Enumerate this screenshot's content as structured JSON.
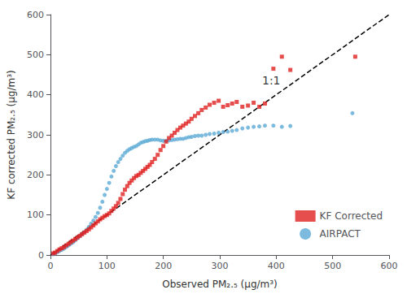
{
  "chart_data": {
    "type": "scatter",
    "title": "",
    "xlabel": "Observed PM₂.₅ (μg/m³)",
    "ylabel": "KF corrected PM₂.₅ (μg/m³)",
    "xlim": [
      0,
      600
    ],
    "ylim": [
      0,
      600
    ],
    "xticks": [
      0,
      100,
      200,
      300,
      400,
      500,
      600
    ],
    "yticks": [
      0,
      100,
      200,
      300,
      400,
      500,
      600
    ],
    "grid": false,
    "legend": "lower right",
    "annotations": [
      {
        "text": "1:1",
        "x": 375,
        "y": 435
      }
    ],
    "series": [
      {
        "type": "line",
        "color": "#000000",
        "line_style": "dashed",
        "x": [
          0,
          600
        ],
        "values": [
          0,
          600
        ]
      },
      {
        "type": "scatter",
        "name": "AIRPACT",
        "color": "#5baad4",
        "marker": "circle",
        "x": [
          5,
          8,
          12,
          16,
          20,
          24,
          28,
          32,
          36,
          40,
          44,
          48,
          52,
          56,
          60,
          64,
          68,
          72,
          76,
          80,
          84,
          88,
          92,
          96,
          100,
          104,
          108,
          112,
          116,
          120,
          124,
          128,
          132,
          136,
          140,
          144,
          148,
          152,
          156,
          160,
          164,
          168,
          172,
          176,
          180,
          185,
          190,
          195,
          200,
          205,
          210,
          215,
          220,
          225,
          230,
          235,
          240,
          245,
          250,
          256,
          262,
          268,
          275,
          282,
          290,
          298,
          306,
          314,
          322,
          330,
          340,
          350,
          360,
          370,
          380,
          395,
          410,
          425,
          535
        ],
        "values": [
          2,
          4,
          7,
          10,
          13,
          16,
          20,
          24,
          28,
          32,
          37,
          42,
          47,
          52,
          57,
          63,
          70,
          78,
          86,
          95,
          105,
          118,
          133,
          150,
          165,
          180,
          196,
          210,
          222,
          232,
          240,
          248,
          255,
          260,
          264,
          267,
          270,
          272,
          276,
          280,
          282,
          284,
          285,
          287,
          288,
          288,
          288,
          286,
          285,
          285,
          286,
          287,
          288,
          289,
          290,
          290,
          292,
          294,
          295,
          297,
          298,
          298,
          300,
          302,
          303,
          305,
          307,
          308,
          310,
          312,
          316,
          318,
          320,
          321,
          323,
          323,
          320,
          322,
          354
        ]
      },
      {
        "type": "scatter",
        "name": "KF Corrected",
        "color": "#e02020",
        "marker": "square",
        "x": [
          5,
          8,
          12,
          16,
          20,
          24,
          28,
          32,
          36,
          40,
          44,
          48,
          52,
          56,
          60,
          64,
          68,
          72,
          76,
          80,
          84,
          88,
          92,
          96,
          100,
          104,
          108,
          112,
          116,
          120,
          124,
          128,
          132,
          136,
          140,
          144,
          148,
          152,
          156,
          160,
          164,
          168,
          172,
          176,
          180,
          185,
          190,
          195,
          200,
          205,
          210,
          215,
          220,
          225,
          230,
          235,
          240,
          245,
          250,
          256,
          262,
          268,
          275,
          282,
          290,
          298,
          306,
          314,
          322,
          330,
          340,
          350,
          360,
          370,
          380,
          395,
          410,
          425,
          540
        ],
        "values": [
          4,
          6,
          10,
          14,
          17,
          20,
          24,
          28,
          32,
          36,
          40,
          44,
          48,
          52,
          56,
          60,
          64,
          69,
          74,
          79,
          84,
          89,
          93,
          97,
          100,
          104,
          110,
          116,
          122,
          130,
          140,
          152,
          163,
          172,
          180,
          186,
          192,
          197,
          200,
          205,
          210,
          215,
          220,
          225,
          232,
          240,
          250,
          262,
          272,
          283,
          292,
          298,
          305,
          312,
          318,
          323,
          328,
          333,
          340,
          347,
          354,
          362,
          368,
          375,
          380,
          385,
          370,
          374,
          378,
          382,
          370,
          373,
          380,
          370,
          378,
          465,
          495,
          462,
          495
        ]
      }
    ]
  }
}
